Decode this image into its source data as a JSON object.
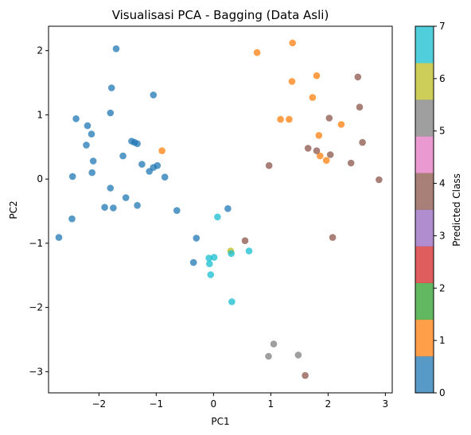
{
  "chart_data": {
    "type": "scatter",
    "title": "Visualisasi PCA - Bagging (Data Asli)",
    "xlabel": "PC1",
    "ylabel": "PC2",
    "xlim": [
      -2.88,
      3.12
    ],
    "ylim": [
      -3.33,
      2.38
    ],
    "x_ticks": [
      -2,
      -1,
      0,
      1,
      2,
      3
    ],
    "y_ticks": [
      -3,
      -2,
      -1,
      0,
      1,
      2
    ],
    "x_tick_labels": [
      "−2",
      "−1",
      "0",
      "1",
      "2",
      "3"
    ],
    "y_tick_labels": [
      "−3",
      "−2",
      "−1",
      "0",
      "1",
      "2"
    ],
    "grid": false,
    "colorbar": {
      "label": "Predicted Class",
      "min": 0,
      "max": 7,
      "ticks": [
        "0",
        "1",
        "2",
        "3",
        "4",
        "5",
        "6",
        "7"
      ],
      "colors": [
        "#1f77b4",
        "#ff7f0e",
        "#2ca02c",
        "#d62728",
        "#9467bd",
        "#8c564b",
        "#e377c2",
        "#7f7f7f",
        "#bcbd22",
        "#17becf"
      ]
    },
    "series": [
      {
        "class": 0,
        "color": "#1f77b4",
        "points": [
          [
            -1.7,
            2.03
          ],
          [
            -1.78,
            1.42
          ],
          [
            -1.05,
            1.31
          ],
          [
            -1.8,
            1.03
          ],
          [
            -2.4,
            0.94
          ],
          [
            -2.2,
            0.83
          ],
          [
            -2.13,
            0.7
          ],
          [
            -2.22,
            0.53
          ],
          [
            -1.43,
            0.59
          ],
          [
            -1.38,
            0.57
          ],
          [
            -1.33,
            0.55
          ],
          [
            -1.58,
            0.36
          ],
          [
            -2.1,
            0.28
          ],
          [
            -1.25,
            0.23
          ],
          [
            -0.98,
            0.21
          ],
          [
            -1.05,
            0.18
          ],
          [
            -1.12,
            0.12
          ],
          [
            -2.12,
            0.1
          ],
          [
            -0.85,
            0.03
          ],
          [
            -2.46,
            0.04
          ],
          [
            -1.8,
            -0.14
          ],
          [
            -1.53,
            -0.29
          ],
          [
            -1.33,
            -0.41
          ],
          [
            -1.75,
            -0.45
          ],
          [
            -1.9,
            -0.44
          ],
          [
            -0.64,
            -0.49
          ],
          [
            -2.47,
            -0.62
          ],
          [
            -2.7,
            -0.91
          ],
          [
            -0.3,
            -0.92
          ],
          [
            -0.35,
            -1.3
          ],
          [
            0.25,
            -0.46
          ]
        ]
      },
      {
        "class": 1,
        "color": "#ff7f0e",
        "points": [
          [
            0.76,
            1.97
          ],
          [
            1.38,
            2.12
          ],
          [
            1.8,
            1.61
          ],
          [
            1.37,
            1.52
          ],
          [
            1.73,
            1.27
          ],
          [
            1.17,
            0.93
          ],
          [
            1.32,
            0.93
          ],
          [
            2.23,
            0.85
          ],
          [
            1.84,
            0.68
          ],
          [
            -0.9,
            0.44
          ],
          [
            1.86,
            0.36
          ],
          [
            1.97,
            0.29
          ]
        ]
      },
      {
        "class": 5,
        "color": "#8c564b",
        "points": [
          [
            2.52,
            1.59
          ],
          [
            2.55,
            1.12
          ],
          [
            2.02,
            0.95
          ],
          [
            2.6,
            0.57
          ],
          [
            1.65,
            0.48
          ],
          [
            1.8,
            0.44
          ],
          [
            2.04,
            0.38
          ],
          [
            2.4,
            0.25
          ],
          [
            0.97,
            0.21
          ],
          [
            2.89,
            -0.01
          ],
          [
            2.08,
            -0.91
          ],
          [
            0.55,
            -0.96
          ],
          [
            1.6,
            -3.06
          ]
        ]
      },
      {
        "class": 6,
        "color": "#bcbd22",
        "points": [
          [
            0.3,
            -1.12
          ]
        ]
      },
      {
        "class": 7,
        "color": "#17becf",
        "points": [
          [
            0.07,
            -0.59
          ],
          [
            0.62,
            -1.12
          ],
          [
            0.31,
            -1.16
          ],
          [
            -0.08,
            -1.23
          ],
          [
            0.01,
            -1.22
          ],
          [
            -0.07,
            -1.32
          ],
          [
            -0.05,
            -1.49
          ],
          [
            0.32,
            -1.91
          ]
        ]
      },
      {
        "class": 5.5,
        "color": "#7f7f7f",
        "points": [
          [
            1.05,
            -2.57
          ],
          [
            0.96,
            -2.76
          ],
          [
            1.48,
            -2.74
          ]
        ]
      }
    ]
  }
}
